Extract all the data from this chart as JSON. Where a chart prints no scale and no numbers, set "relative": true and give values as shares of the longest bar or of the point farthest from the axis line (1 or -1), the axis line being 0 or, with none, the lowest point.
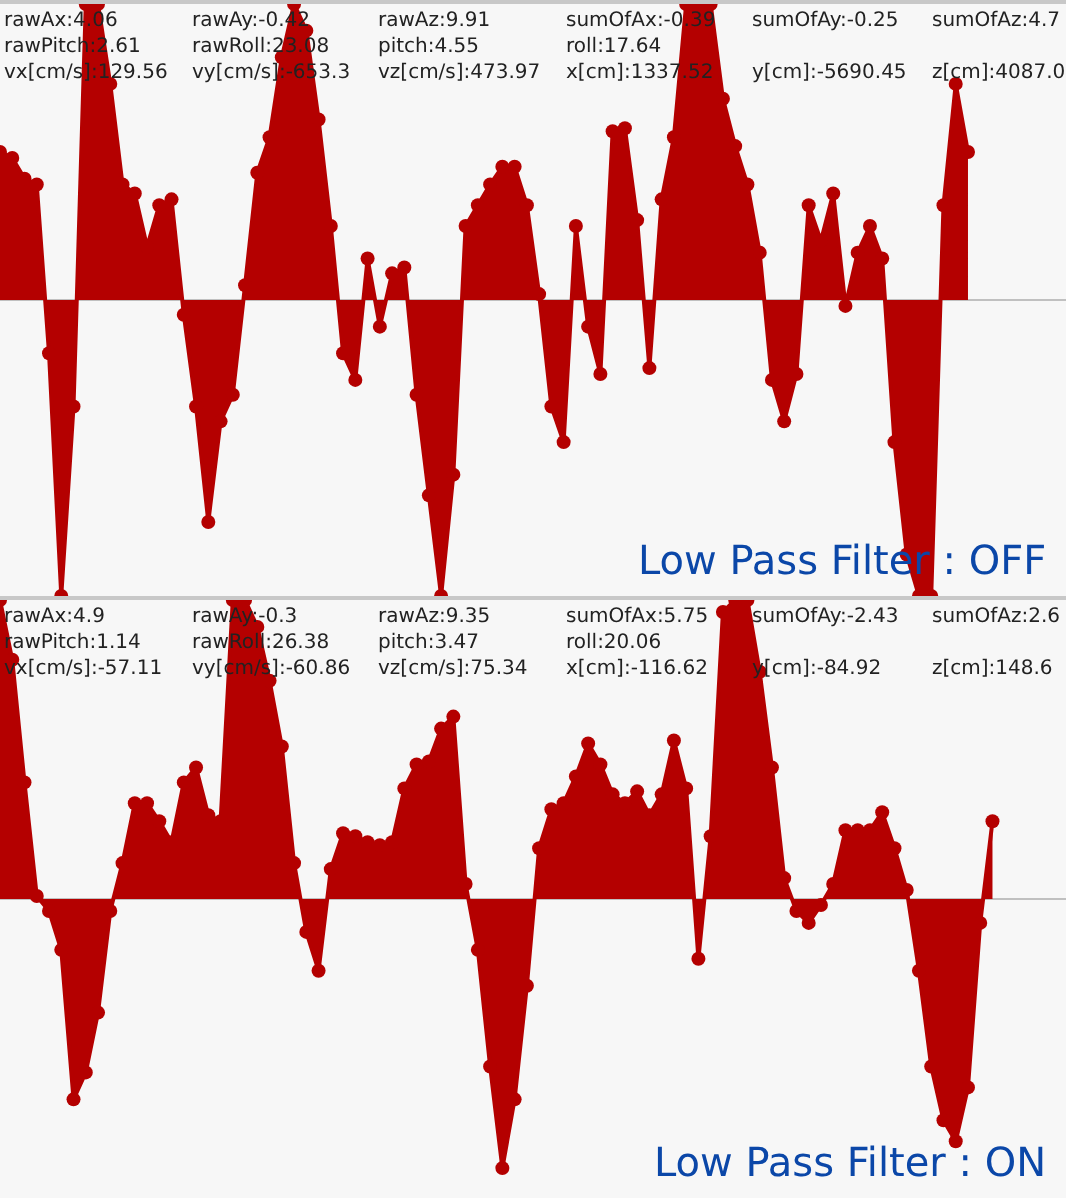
{
  "chart_data": [
    {
      "type": "area",
      "relative": true,
      "marker": "circle",
      "color": "#b40000",
      "categories": [
        null,
        null,
        null,
        null,
        null,
        null,
        null,
        null,
        null,
        null,
        null,
        null,
        null,
        null,
        null,
        null,
        null,
        null,
        null,
        null,
        null,
        null,
        null,
        null,
        null,
        null,
        null,
        null,
        null,
        null,
        null,
        null,
        null,
        null,
        null,
        null,
        null,
        null,
        null,
        null,
        null,
        null,
        null,
        null,
        null,
        null,
        null,
        null,
        null,
        null,
        null,
        null,
        null,
        null,
        null,
        null,
        null,
        null,
        null,
        null,
        null,
        null,
        null,
        null,
        null,
        null,
        null,
        null,
        null,
        null,
        null,
        null,
        null,
        null,
        null,
        null,
        null,
        null,
        null,
        null,
        null,
        null,
        null,
        null,
        null,
        null,
        null,
        null
      ],
      "values": [
        0.5,
        0.48,
        0.41,
        0.39,
        -0.18,
        -1,
        -0.36,
        1,
        1,
        0.73,
        0.39,
        0.36,
        0.18,
        0.32,
        0.34,
        -0.05,
        -0.36,
        -0.75,
        -0.41,
        -0.32,
        0.05,
        0.43,
        0.55,
        0.82,
        1,
        0.91,
        0.61,
        0.25,
        -0.18,
        -0.27,
        0.14,
        -0.09,
        0.09,
        0.11,
        -0.32,
        -0.66,
        -1,
        -0.59,
        0.25,
        0.32,
        0.39,
        0.45,
        0.45,
        0.32,
        0.02,
        -0.36,
        -0.48,
        0.25,
        -0.09,
        -0.25,
        0.57,
        0.58,
        0.27,
        -0.23,
        0.34,
        0.55,
        1,
        1,
        1,
        0.68,
        0.52,
        0.39,
        0.16,
        -0.27,
        -0.41,
        -0.25,
        0.32,
        0.2,
        0.36,
        -0.02,
        0.16,
        0.25,
        0.14,
        -0.48,
        -0.86,
        -1,
        -1,
        0.32,
        0.73,
        0.5,
        null,
        null,
        null,
        null,
        null,
        null,
        null,
        null
      ],
      "annotations": [
        "rawAx:4.06",
        "rawAy:-0.42",
        "rawAz:9.91",
        "sumOfAx:-0.39",
        "sumOfAy:-0.25",
        "sumOfAz:4.7",
        "rawPitch:2.61",
        "rawRoll:23.08",
        "pitch:4.55",
        "roll:17.64",
        "vx[cm/s]:129.56",
        "vy[cm/s]:-653.3",
        "vz[cm/s]:473.97",
        "x[cm]:1337.52",
        "y[cm]:-5690.45",
        "z[cm]:4087.0",
        "Low Pass Filter : OFF"
      ]
    },
    {
      "type": "area",
      "relative": true,
      "marker": "circle",
      "color": "#b40000",
      "categories": [
        null,
        null,
        null,
        null,
        null,
        null,
        null,
        null,
        null,
        null,
        null,
        null,
        null,
        null,
        null,
        null,
        null,
        null,
        null,
        null,
        null,
        null,
        null,
        null,
        null,
        null,
        null,
        null,
        null,
        null,
        null,
        null,
        null,
        null,
        null,
        null,
        null,
        null,
        null,
        null,
        null,
        null,
        null,
        null,
        null,
        null,
        null,
        null,
        null,
        null,
        null,
        null,
        null,
        null,
        null,
        null,
        null,
        null,
        null,
        null,
        null,
        null,
        null,
        null,
        null,
        null,
        null,
        null,
        null,
        null,
        null,
        null,
        null,
        null,
        null,
        null,
        null,
        null,
        null,
        null,
        null,
        null,
        null,
        null,
        null,
        null,
        null,
        null
      ],
      "values": [
        1,
        0.8,
        0.39,
        0.01,
        -0.04,
        -0.17,
        -0.67,
        -0.58,
        -0.38,
        -0.04,
        0.12,
        0.32,
        0.32,
        0.26,
        0.19,
        0.39,
        0.44,
        0.28,
        0.26,
        1,
        1,
        0.91,
        0.73,
        0.51,
        0.12,
        -0.11,
        -0.24,
        0.1,
        0.22,
        0.21,
        0.19,
        0.18,
        0.19,
        0.37,
        0.45,
        0.46,
        0.57,
        0.61,
        0.05,
        -0.17,
        -0.56,
        -0.9,
        -0.67,
        -0.29,
        0.17,
        0.3,
        0.32,
        0.41,
        0.52,
        0.45,
        0.35,
        0.32,
        0.36,
        0.28,
        0.35,
        0.53,
        0.37,
        -0.2,
        0.21,
        0.96,
        1,
        1,
        0.76,
        0.44,
        0.07,
        -0.04,
        -0.08,
        -0.02,
        0.05,
        0.23,
        0.23,
        0.23,
        0.29,
        0.17,
        0.03,
        -0.24,
        -0.56,
        -0.74,
        -0.81,
        -0.63,
        -0.08,
        0.26,
        null,
        null,
        null,
        null,
        null,
        null
      ],
      "annotations": [
        "rawAx:4.9",
        "rawAy:-0.3",
        "rawAz:9.35",
        "sumOfAx:5.75",
        "sumOfAy:-2.43",
        "sumOfAz:2.6",
        "rawPitch:1.14",
        "rawRoll:26.38",
        "pitch:3.47",
        "roll:20.06",
        "vx[cm/s]:-57.11",
        "vy[cm/s]:-60.86",
        "vz[cm/s]:75.34",
        "x[cm]:-116.62",
        "y[cm]:-84.92",
        "z[cm]:148.6",
        "Low Pass Filter : ON"
      ]
    }
  ]
}
